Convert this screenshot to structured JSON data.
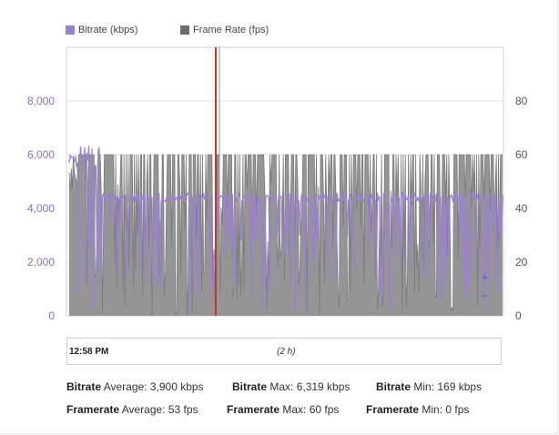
{
  "legend": [
    {
      "label": "Bitrate (kbps)",
      "color": "#9b82cc"
    },
    {
      "label": "Frame Rate (fps)",
      "color": "#6b6b6b"
    }
  ],
  "chart_data": {
    "type": "line",
    "series": [
      {
        "name": "Bitrate (kbps)",
        "axis": "left",
        "color": "#9b82cc",
        "typical": 4400,
        "average": 3900,
        "max": 6319,
        "min": 169
      },
      {
        "name": "Frame Rate (fps)",
        "axis": "right",
        "color": "#8c8c8c",
        "typical": 60,
        "average": 53,
        "max": 60,
        "min": 0
      }
    ],
    "left_axis": {
      "ticks": [
        "0",
        "2,000",
        "4,000",
        "6,000",
        "8,000"
      ],
      "ylim": [
        0,
        10000
      ],
      "color": "#8b6fc4"
    },
    "right_axis": {
      "ticks": [
        "0",
        "20",
        "40",
        "60",
        "80"
      ],
      "ylim": [
        0,
        100
      ]
    },
    "grid": true,
    "marker_color": "#c0392b"
  },
  "timeline": {
    "start": "12:58 PM",
    "duration": "(2 h)"
  },
  "stats": {
    "bitrate_label": "Bitrate",
    "framerate_label": "Framerate",
    "bitrate_avg": "Average: 3,900 kbps",
    "bitrate_max": "Max: 6,319 kbps",
    "bitrate_min": "Min: 169 kbps",
    "framerate_avg": "Average: 53 fps",
    "framerate_max": "Max: 60 fps",
    "framerate_min": "Min: 0 fps"
  },
  "zoom": {
    "in": "+",
    "out": "−"
  }
}
